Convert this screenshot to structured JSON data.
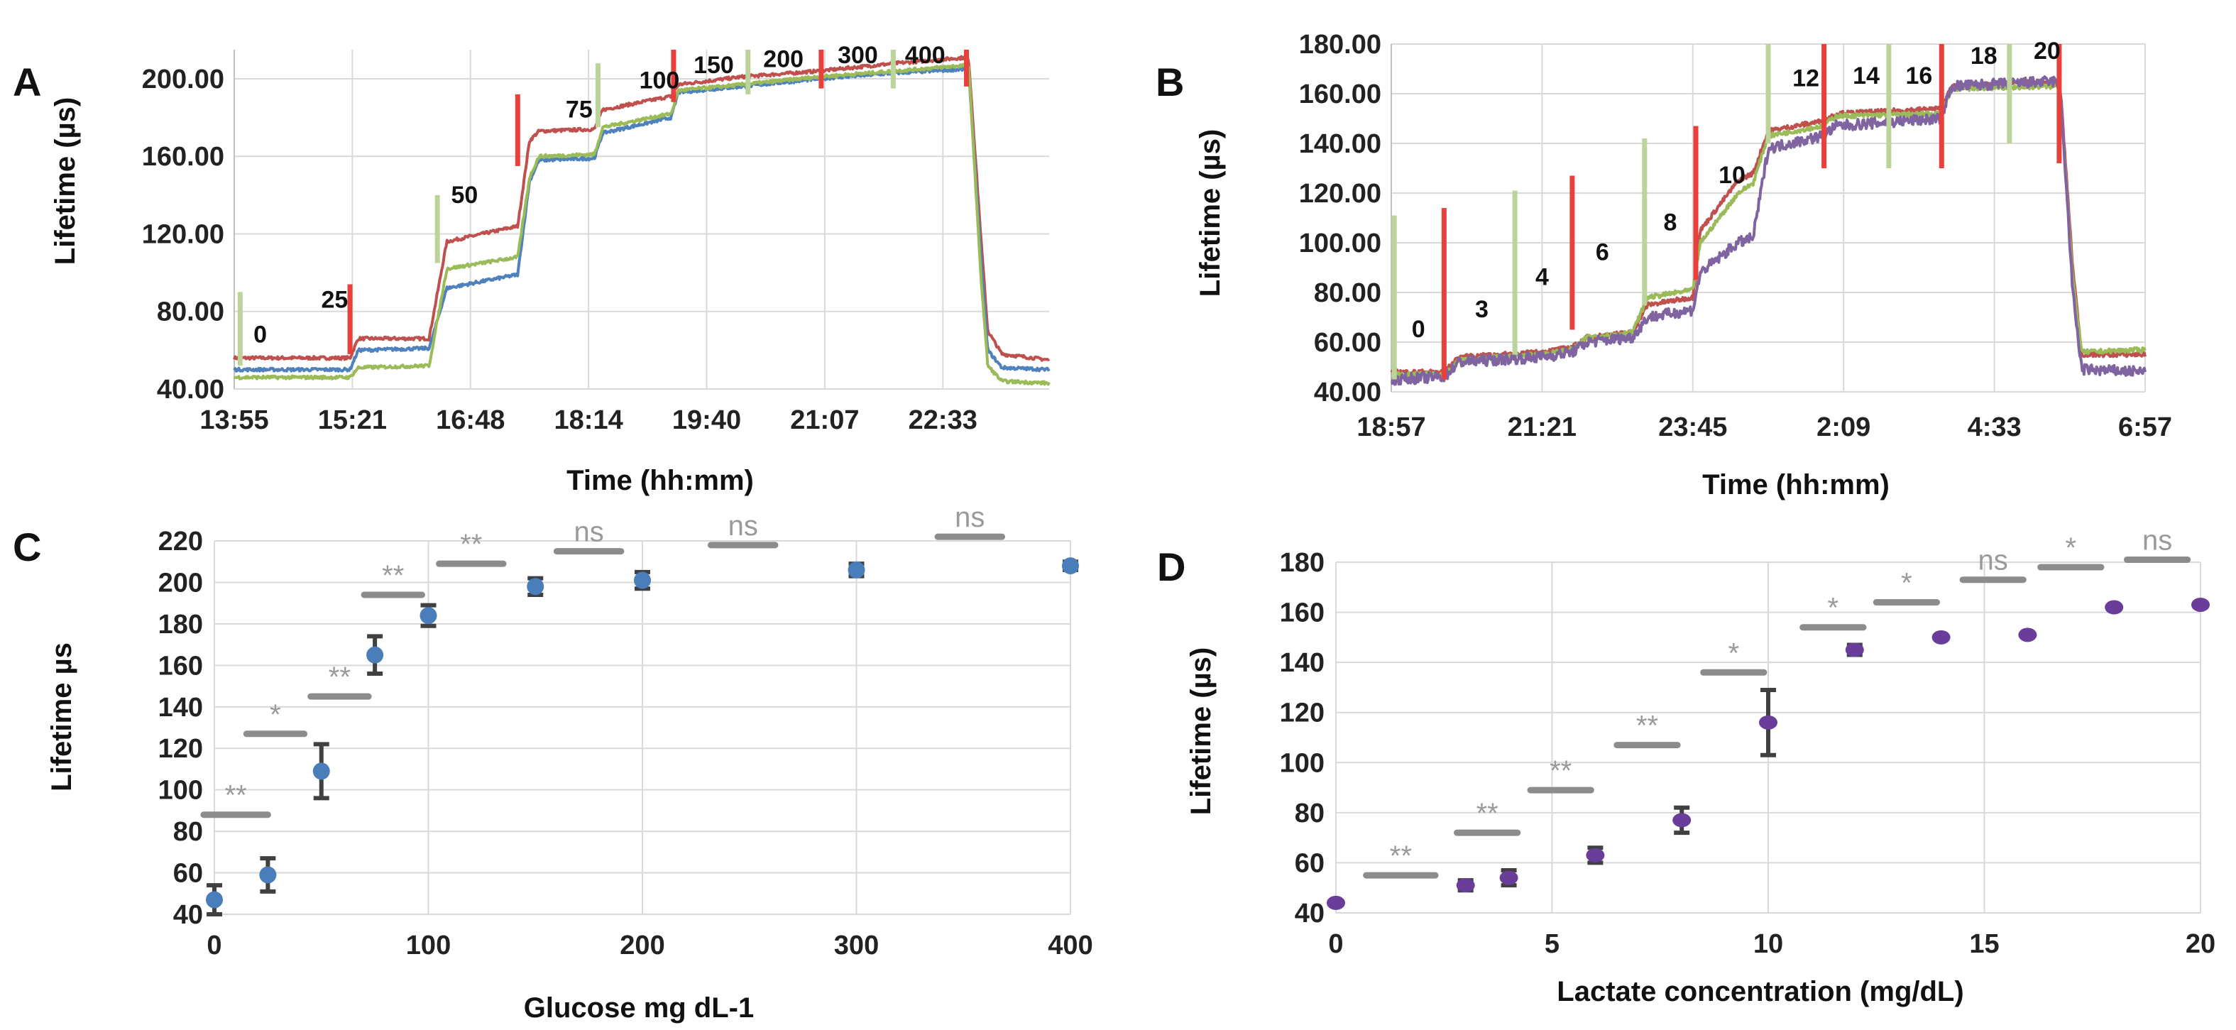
{
  "chart_data": [
    {
      "id": "A",
      "type": "line",
      "panel_label": "A",
      "xlabel": "Time (hh:mm)",
      "ylabel": "Lifetime (µs)",
      "x_tick_labels": [
        "13:55",
        "15:21",
        "16:48",
        "18:14",
        "19:40",
        "21:07",
        "22:33"
      ],
      "y_tick_labels": [
        "40.00",
        "80.00",
        "120.00",
        "160.00",
        "200.00"
      ],
      "ylim": [
        40,
        215
      ],
      "x_range_steps": [
        0,
        6.9
      ],
      "annotations": [
        {
          "text": "0",
          "x": 0.22,
          "y": 64
        },
        {
          "text": "25",
          "x": 0.85,
          "y": 82
        },
        {
          "text": "50",
          "x": 1.95,
          "y": 136
        },
        {
          "text": "75",
          "x": 2.92,
          "y": 180
        },
        {
          "text": "100",
          "x": 3.6,
          "y": 195
        },
        {
          "text": "150",
          "x": 4.06,
          "y": 203
        },
        {
          "text": "200",
          "x": 4.65,
          "y": 206
        },
        {
          "text": "300",
          "x": 5.28,
          "y": 208
        },
        {
          "text": "400",
          "x": 5.85,
          "y": 208
        }
      ],
      "markers": [
        {
          "x": 0.05,
          "color": "#bcd49a",
          "y0": 52,
          "y1": 90
        },
        {
          "x": 0.98,
          "color": "#e8403a",
          "y0": 58,
          "y1": 94
        },
        {
          "x": 1.72,
          "color": "#bcd49a",
          "y0": 105,
          "y1": 140
        },
        {
          "x": 2.4,
          "color": "#e8403a",
          "y0": 155,
          "y1": 192
        },
        {
          "x": 3.08,
          "color": "#bcd49a",
          "y0": 175,
          "y1": 208
        },
        {
          "x": 3.72,
          "color": "#e8403a",
          "y0": 188,
          "y1": 215
        },
        {
          "x": 4.35,
          "color": "#bcd49a",
          "y0": 192,
          "y1": 215
        },
        {
          "x": 4.97,
          "color": "#e8403a",
          "y0": 195,
          "y1": 215
        },
        {
          "x": 5.58,
          "color": "#bcd49a",
          "y0": 195,
          "y1": 215
        },
        {
          "x": 6.2,
          "color": "#e8403a",
          "y0": 196,
          "y1": 215
        }
      ],
      "series": [
        {
          "name": "red",
          "color": "#c0504d",
          "points": [
            [
              0,
              56
            ],
            [
              0.98,
              56
            ],
            [
              1.05,
              66
            ],
            [
              1.65,
              66
            ],
            [
              1.8,
              116
            ],
            [
              2.4,
              124
            ],
            [
              2.5,
              168
            ],
            [
              2.58,
              173
            ],
            [
              3.05,
              174
            ],
            [
              3.12,
              184
            ],
            [
              3.7,
              191
            ],
            [
              3.76,
              197
            ],
            [
              4.3,
              201
            ],
            [
              4.95,
              204
            ],
            [
              5.6,
              208
            ],
            [
              6.2,
              211
            ],
            [
              6.22,
              209
            ],
            [
              6.32,
              120
            ],
            [
              6.38,
              70
            ],
            [
              6.5,
              58
            ],
            [
              6.9,
              55
            ]
          ]
        },
        {
          "name": "blue",
          "color": "#4f81bd",
          "points": [
            [
              0,
              50
            ],
            [
              0.98,
              50
            ],
            [
              1.05,
              60
            ],
            [
              1.65,
              61
            ],
            [
              1.8,
              92
            ],
            [
              2.4,
              99
            ],
            [
              2.5,
              147
            ],
            [
              2.58,
              158
            ],
            [
              3.05,
              159
            ],
            [
              3.12,
              172
            ],
            [
              3.7,
              180
            ],
            [
              3.76,
              193
            ],
            [
              4.3,
              196
            ],
            [
              4.95,
              200
            ],
            [
              5.6,
              203
            ],
            [
              6.2,
              205
            ],
            [
              6.22,
              203
            ],
            [
              6.32,
              110
            ],
            [
              6.38,
              60
            ],
            [
              6.5,
              51
            ],
            [
              6.9,
              50
            ]
          ]
        },
        {
          "name": "green",
          "color": "#9bbb59",
          "points": [
            [
              0,
              46
            ],
            [
              0.98,
              46
            ],
            [
              1.05,
              51
            ],
            [
              1.65,
              52
            ],
            [
              1.8,
              102
            ],
            [
              2.4,
              108
            ],
            [
              2.5,
              149
            ],
            [
              2.58,
              160
            ],
            [
              3.05,
              161
            ],
            [
              3.12,
              175
            ],
            [
              3.7,
              182
            ],
            [
              3.76,
              194
            ],
            [
              4.3,
              197
            ],
            [
              4.95,
              201
            ],
            [
              5.6,
              204
            ],
            [
              6.2,
              207
            ],
            [
              6.22,
              205
            ],
            [
              6.32,
              100
            ],
            [
              6.38,
              52
            ],
            [
              6.5,
              44
            ],
            [
              6.9,
              43
            ]
          ]
        }
      ]
    },
    {
      "id": "B",
      "type": "line",
      "panel_label": "B",
      "xlabel": "Time  (hh:mm)",
      "ylabel": "Lifetime (µs)",
      "x_tick_labels": [
        "18:57",
        "21:21",
        "23:45",
        "2:09",
        "4:33",
        "6:57"
      ],
      "y_tick_labels": [
        "40.00",
        "60.00",
        "80.00",
        "100.00",
        "120.00",
        "140.00",
        "160.00",
        "180.00"
      ],
      "ylim": [
        40,
        180
      ],
      "x_range_steps": [
        0,
        5
      ],
      "annotations": [
        {
          "text": "0",
          "x": 0.18,
          "y": 62
        },
        {
          "text": "3",
          "x": 0.6,
          "y": 70
        },
        {
          "text": "4",
          "x": 1.0,
          "y": 83
        },
        {
          "text": "6",
          "x": 1.4,
          "y": 93
        },
        {
          "text": "8",
          "x": 1.85,
          "y": 105
        },
        {
          "text": "10",
          "x": 2.26,
          "y": 124
        },
        {
          "text": "12",
          "x": 2.75,
          "y": 163
        },
        {
          "text": "14",
          "x": 3.15,
          "y": 164
        },
        {
          "text": "16",
          "x": 3.5,
          "y": 164
        },
        {
          "text": "18",
          "x": 3.93,
          "y": 172
        },
        {
          "text": "20",
          "x": 4.35,
          "y": 174
        }
      ],
      "markers": [
        {
          "x": 0.02,
          "color": "#bcd49a",
          "y0": 45,
          "y1": 111
        },
        {
          "x": 0.35,
          "color": "#e8403a",
          "y0": 45,
          "y1": 114
        },
        {
          "x": 0.82,
          "color": "#bcd49a",
          "y0": 55,
          "y1": 121
        },
        {
          "x": 1.2,
          "color": "#e8403a",
          "y0": 65,
          "y1": 127
        },
        {
          "x": 1.68,
          "color": "#bcd49a",
          "y0": 75,
          "y1": 142
        },
        {
          "x": 2.02,
          "color": "#e8403a",
          "y0": 85,
          "y1": 147
        },
        {
          "x": 2.5,
          "color": "#bcd49a",
          "y0": 140,
          "y1": 180
        },
        {
          "x": 2.87,
          "color": "#e8403a",
          "y0": 130,
          "y1": 180
        },
        {
          "x": 3.3,
          "color": "#bcd49a",
          "y0": 130,
          "y1": 180
        },
        {
          "x": 3.65,
          "color": "#e8403a",
          "y0": 130,
          "y1": 180
        },
        {
          "x": 4.1,
          "color": "#bcd49a",
          "y0": 140,
          "y1": 180
        },
        {
          "x": 4.43,
          "color": "#e8403a",
          "y0": 132,
          "y1": 180
        }
      ],
      "series": [
        {
          "name": "red",
          "color": "#c0504d",
          "points": [
            [
              0,
              48
            ],
            [
              0.35,
              48
            ],
            [
              0.45,
              54
            ],
            [
              1.0,
              56
            ],
            [
              1.2,
              58
            ],
            [
              1.3,
              62
            ],
            [
              1.6,
              64
            ],
            [
              1.7,
              75
            ],
            [
              2.0,
              78
            ],
            [
              2.05,
              105
            ],
            [
              2.3,
              125
            ],
            [
              2.4,
              128
            ],
            [
              2.5,
              145
            ],
            [
              2.86,
              149
            ],
            [
              2.95,
              152
            ],
            [
              3.64,
              154
            ],
            [
              3.72,
              163
            ],
            [
              4.42,
              165
            ],
            [
              4.44,
              160
            ],
            [
              4.52,
              90
            ],
            [
              4.58,
              55
            ],
            [
              5.0,
              55
            ]
          ]
        },
        {
          "name": "green",
          "color": "#9bbb59",
          "points": [
            [
              0,
              47
            ],
            [
              0.35,
              47
            ],
            [
              0.45,
              53
            ],
            [
              1.0,
              55
            ],
            [
              1.2,
              57
            ],
            [
              1.3,
              62
            ],
            [
              1.6,
              64
            ],
            [
              1.7,
              78
            ],
            [
              2.0,
              81
            ],
            [
              2.05,
              100
            ],
            [
              2.3,
              120
            ],
            [
              2.4,
              124
            ],
            [
              2.5,
              143
            ],
            [
              2.86,
              147
            ],
            [
              2.95,
              151
            ],
            [
              3.64,
              152
            ],
            [
              3.72,
              162
            ],
            [
              4.42,
              163
            ],
            [
              4.44,
              158
            ],
            [
              4.52,
              85
            ],
            [
              4.58,
              56
            ],
            [
              5.0,
              57
            ]
          ]
        },
        {
          "name": "purple",
          "color": "#8064a2",
          "points": [
            [
              0,
              45
            ],
            [
              0.35,
              46
            ],
            [
              0.45,
              52
            ],
            [
              1.0,
              54
            ],
            [
              1.2,
              56
            ],
            [
              1.3,
              60
            ],
            [
              1.6,
              62
            ],
            [
              1.7,
              70
            ],
            [
              2.0,
              73
            ],
            [
              2.05,
              88
            ],
            [
              2.3,
              100
            ],
            [
              2.4,
              102
            ],
            [
              2.5,
              138
            ],
            [
              2.86,
              143
            ],
            [
              2.95,
              147
            ],
            [
              3.64,
              150
            ],
            [
              3.72,
              163
            ],
            [
              4.42,
              165
            ],
            [
              4.44,
              160
            ],
            [
              4.52,
              80
            ],
            [
              4.58,
              49
            ],
            [
              5.0,
              48
            ]
          ]
        }
      ]
    },
    {
      "id": "C",
      "type": "scatter",
      "panel_label": "C",
      "xlabel": "Glucose mg dL-1",
      "ylabel": "Lifetime µs",
      "xlim": [
        0,
        400
      ],
      "ylim": [
        40,
        220
      ],
      "x_ticks": [
        0,
        100,
        200,
        300,
        400
      ],
      "y_ticks": [
        40,
        60,
        80,
        100,
        120,
        140,
        160,
        180,
        200,
        220
      ],
      "marker_color": "#4a7ebb",
      "x": [
        0,
        25,
        50,
        75,
        100,
        150,
        200,
        300,
        400
      ],
      "y": [
        47,
        59,
        109,
        165,
        184,
        198,
        201,
        206,
        208
      ],
      "yerr": [
        7,
        8,
        13,
        9,
        5,
        4,
        4,
        3,
        2
      ],
      "significance": [
        {
          "label": "**",
          "x0": -5,
          "x1": 25,
          "y": 88
        },
        {
          "label": "*",
          "x0": 15,
          "x1": 42,
          "y": 127
        },
        {
          "label": "**",
          "x0": 45,
          "x1": 72,
          "y": 145
        },
        {
          "label": "**",
          "x0": 70,
          "x1": 97,
          "y": 194
        },
        {
          "label": "**",
          "x0": 105,
          "x1": 135,
          "y": 209
        },
        {
          "label": "ns",
          "x0": 160,
          "x1": 190,
          "y": 215
        },
        {
          "label": "ns",
          "x0": 232,
          "x1": 262,
          "y": 218
        },
        {
          "label": "ns",
          "x0": 338,
          "x1": 368,
          "y": 222
        }
      ]
    },
    {
      "id": "D",
      "type": "scatter",
      "panel_label": "D",
      "xlabel": "Lactate concentration (mg/dL)",
      "ylabel": "Lifetime (µs)",
      "xlim": [
        0,
        20
      ],
      "ylim": [
        40,
        180
      ],
      "x_ticks": [
        0,
        5,
        10,
        15,
        20
      ],
      "y_ticks": [
        40,
        60,
        80,
        100,
        120,
        140,
        160,
        180
      ],
      "marker_color": "#6a3d9a",
      "x": [
        0,
        3,
        4,
        6,
        8,
        10,
        12,
        14,
        16,
        18,
        20
      ],
      "y": [
        44,
        51,
        54,
        63,
        77,
        116,
        145,
        150,
        151,
        162,
        163
      ],
      "yerr": [
        1,
        2,
        3,
        3,
        5,
        13,
        2,
        1,
        1,
        1,
        1
      ],
      "significance": [
        {
          "label": "**",
          "x0": 0.7,
          "x1": 2.3,
          "y": 55
        },
        {
          "label": "**",
          "x0": 2.8,
          "x1": 4.2,
          "y": 72
        },
        {
          "label": "**",
          "x0": 4.5,
          "x1": 5.9,
          "y": 89
        },
        {
          "label": "**",
          "x0": 6.5,
          "x1": 7.9,
          "y": 107
        },
        {
          "label": "*",
          "x0": 8.5,
          "x1": 9.9,
          "y": 136
        },
        {
          "label": "*",
          "x0": 10.8,
          "x1": 12.2,
          "y": 154
        },
        {
          "label": "*",
          "x0": 12.5,
          "x1": 13.9,
          "y": 164
        },
        {
          "label": "ns",
          "x0": 14.5,
          "x1": 15.9,
          "y": 173
        },
        {
          "label": "*",
          "x0": 16.3,
          "x1": 17.7,
          "y": 178
        },
        {
          "label": "ns",
          "x0": 18.3,
          "x1": 19.7,
          "y": 181
        }
      ]
    }
  ]
}
